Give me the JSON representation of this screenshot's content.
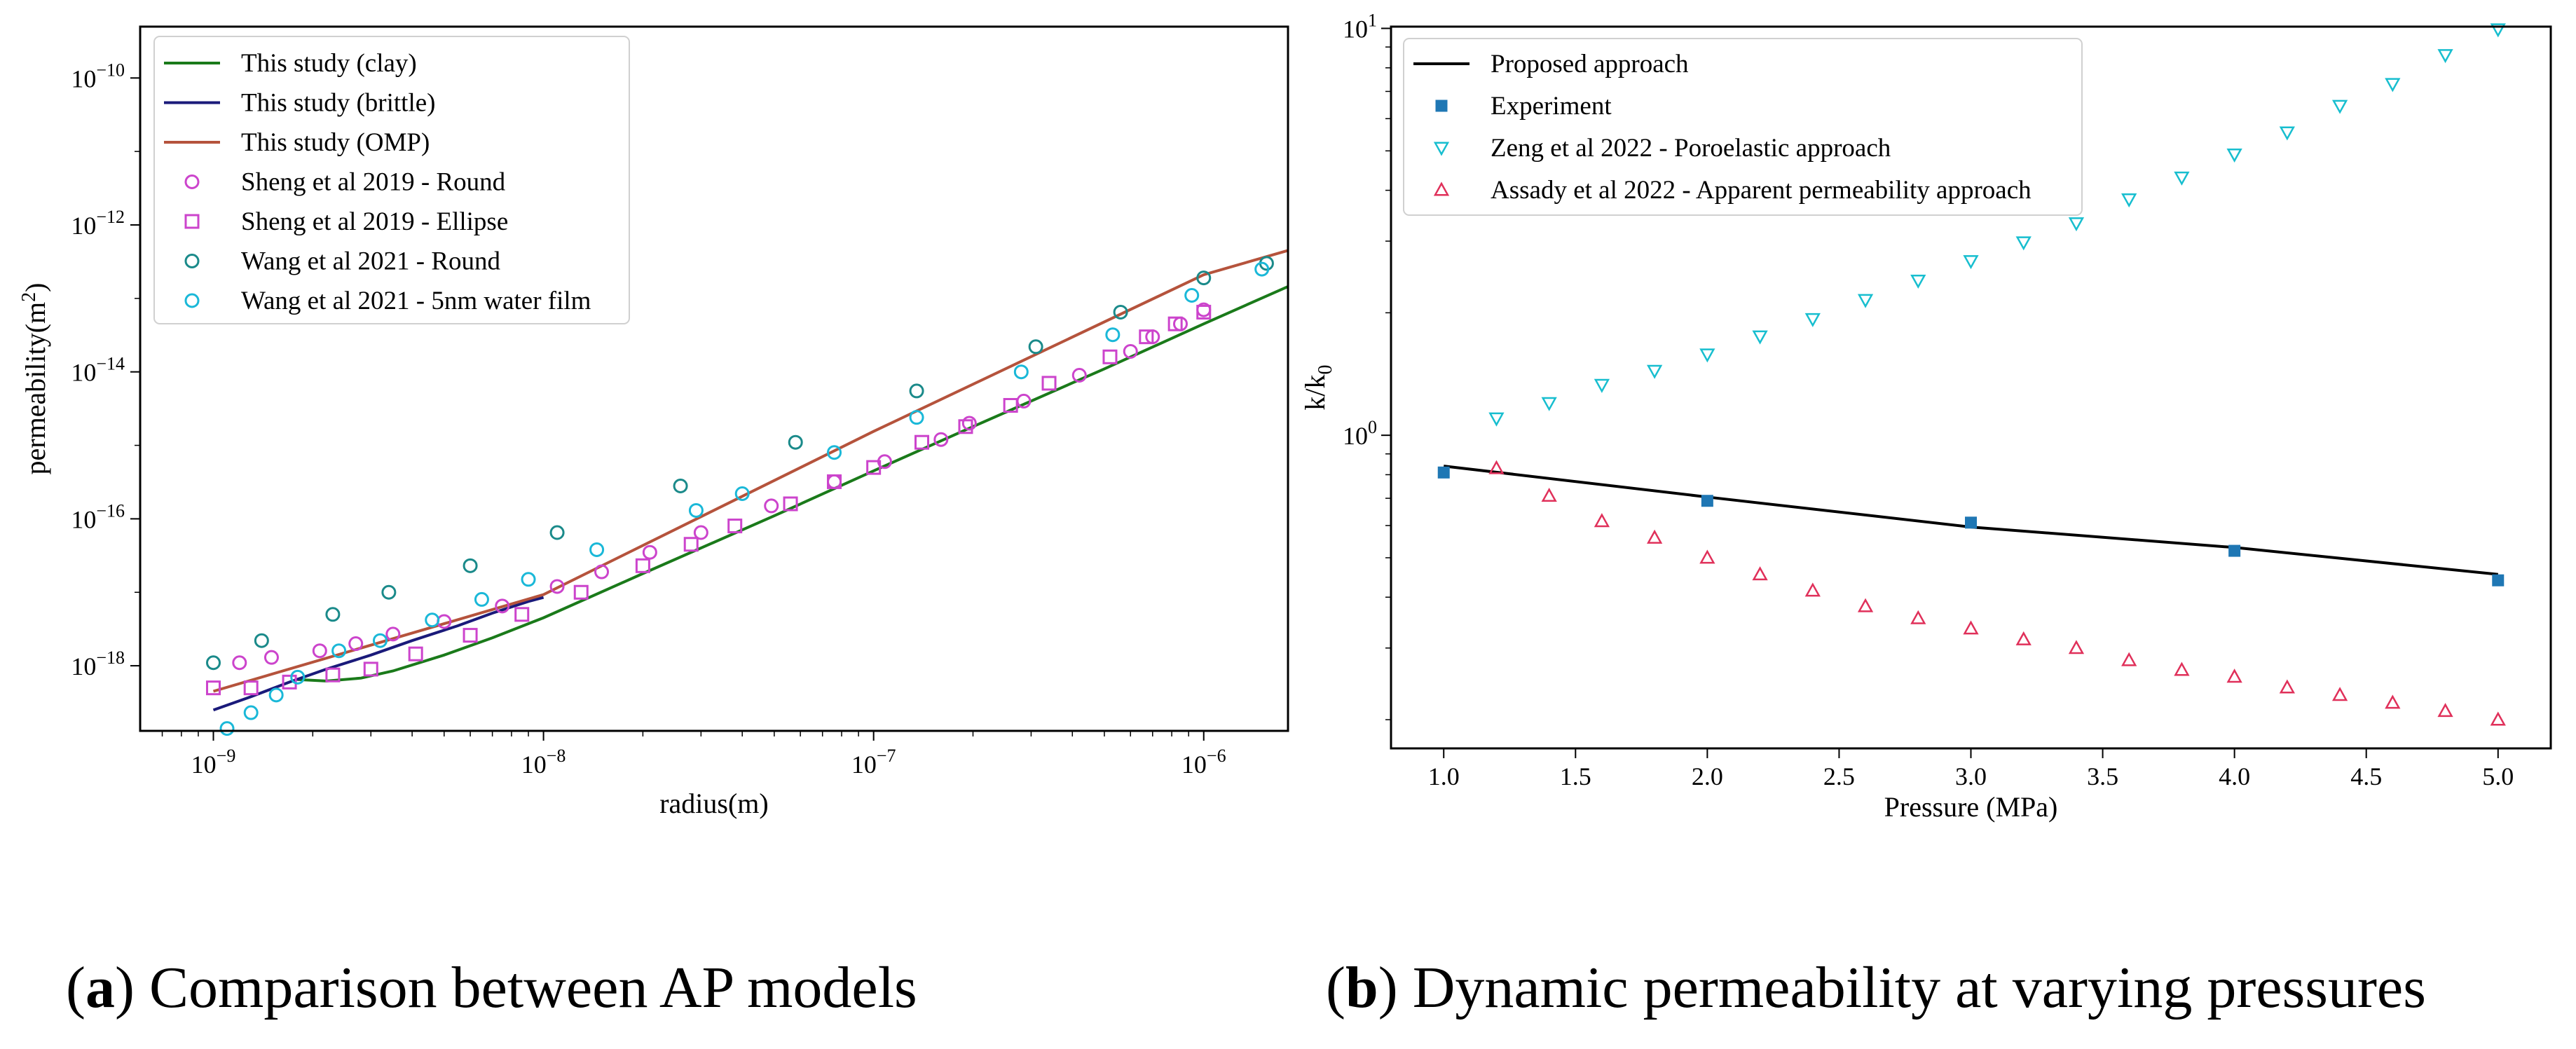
{
  "chart_data": [
    {
      "type": "line",
      "panel": "a",
      "xlabel": "radius(m)",
      "ylabel": "permeability(m^2)",
      "xscale": "log",
      "yscale": "log",
      "xlim": [
        6e-10,
        1.8e-06
      ],
      "ylim": [
        1.3e-19,
        5e-10
      ],
      "xticks": [
        {
          "v": 1e-09,
          "exp": "−9"
        },
        {
          "v": 1e-08,
          "exp": "−8"
        },
        {
          "v": 1e-07,
          "exp": "−7"
        },
        {
          "v": 1e-06,
          "exp": "−6"
        }
      ],
      "yticks": [
        {
          "v": 1e-18,
          "exp": "−18"
        },
        {
          "v": 1e-16,
          "exp": "−16"
        },
        {
          "v": 1e-14,
          "exp": "−14"
        },
        {
          "v": 1e-12,
          "exp": "−12"
        },
        {
          "v": 1e-10,
          "exp": "−10"
        }
      ],
      "legend_position": "top-left",
      "grid": false,
      "series": [
        {
          "name": "This study (clay)",
          "kind": "line",
          "color": "#1a7a1a",
          "points": [
            [
              1.8e-09,
              6.5e-19
            ],
            [
              2.2e-09,
              6.2e-19
            ],
            [
              2.8e-09,
              6.8e-19
            ],
            [
              3.5e-09,
              8.5e-19
            ],
            [
              5e-09,
              1.4e-18
            ],
            [
              7e-09,
              2.4e-18
            ],
            [
              1e-08,
              4.5e-18
            ],
            [
              2e-08,
              1.8e-17
            ],
            [
              5e-08,
              1.1e-16
            ],
            [
              1e-07,
              4.5e-16
            ],
            [
              2e-07,
              1.8e-15
            ],
            [
              5e-07,
              1.1e-14
            ],
            [
              1e-06,
              4.5e-14
            ],
            [
              1.8e-06,
              1.45e-13
            ]
          ]
        },
        {
          "name": "This study (brittle)",
          "kind": "line",
          "color": "#1a1a7a",
          "points": [
            [
              1e-09,
              2.5e-19
            ],
            [
              1.3e-09,
              3.8e-19
            ],
            [
              1.7e-09,
              6e-19
            ],
            [
              2.2e-09,
              9e-19
            ],
            [
              3e-09,
              1.4e-18
            ],
            [
              4e-09,
              2.2e-18
            ],
            [
              5.5e-09,
              3.5e-18
            ],
            [
              7e-09,
              5.2e-18
            ],
            [
              9e-09,
              7.5e-18
            ],
            [
              1e-08,
              8.5e-18
            ]
          ]
        },
        {
          "name": "This study (OMP)",
          "kind": "line",
          "color": "#b5533c",
          "points": [
            [
              1e-09,
              4.5e-19
            ],
            [
              1e-08,
              9.3e-18
            ],
            [
              1e-07,
              1.55e-15
            ],
            [
              1e-06,
              2.1e-13
            ],
            [
              1.8e-06,
              4.5e-13
            ]
          ]
        },
        {
          "name": "Sheng et al 2019 - Round",
          "kind": "circle",
          "color": "#cc44cc",
          "points": [
            [
              1.2e-09,
              1.1e-18
            ],
            [
              1.5e-09,
              1.3e-18
            ],
            [
              2.1e-09,
              1.6e-18
            ],
            [
              2.7e-09,
              2e-18
            ],
            [
              3.5e-09,
              2.7e-18
            ],
            [
              5e-09,
              4e-18
            ],
            [
              7.5e-09,
              6.5e-18
            ],
            [
              1.1e-08,
              1.2e-17
            ],
            [
              1.5e-08,
              1.9e-17
            ],
            [
              2.1e-08,
              3.5e-17
            ],
            [
              3e-08,
              6.5e-17
            ],
            [
              4.9e-08,
              1.5e-16
            ],
            [
              7.6e-08,
              3.2e-16
            ],
            [
              1.08e-07,
              6e-16
            ],
            [
              1.6e-07,
              1.2e-15
            ],
            [
              1.95e-07,
              2e-15
            ],
            [
              2.85e-07,
              4e-15
            ],
            [
              4.2e-07,
              9e-15
            ],
            [
              6e-07,
              1.9e-14
            ],
            [
              7e-07,
              3e-14
            ],
            [
              8.5e-07,
              4.5e-14
            ],
            [
              1e-06,
              7e-14
            ]
          ]
        },
        {
          "name": "Sheng et al 2019 - Ellipse",
          "kind": "square",
          "color": "#cc44cc",
          "points": [
            [
              1e-09,
              5e-19
            ],
            [
              1.3e-09,
              5e-19
            ],
            [
              1.7e-09,
              6e-19
            ],
            [
              2.3e-09,
              7.5e-19
            ],
            [
              3e-09,
              9e-19
            ],
            [
              4.1e-09,
              1.45e-18
            ],
            [
              6e-09,
              2.6e-18
            ],
            [
              8.6e-09,
              5e-18
            ],
            [
              1.3e-08,
              1e-17
            ],
            [
              2e-08,
              2.3e-17
            ],
            [
              2.8e-08,
              4.5e-17
            ],
            [
              3.8e-08,
              8e-17
            ],
            [
              5.6e-08,
              1.6e-16
            ],
            [
              7.6e-08,
              3.2e-16
            ],
            [
              1e-07,
              5e-16
            ],
            [
              1.4e-07,
              1.1e-15
            ],
            [
              1.9e-07,
              1.8e-15
            ],
            [
              2.6e-07,
              3.5e-15
            ],
            [
              3.4e-07,
              7e-15
            ],
            [
              5.2e-07,
              1.6e-14
            ],
            [
              6.7e-07,
              3e-14
            ],
            [
              8.2e-07,
              4.5e-14
            ],
            [
              1e-06,
              6.5e-14
            ]
          ]
        },
        {
          "name": "Wang et al 2021 - Round",
          "kind": "circle",
          "color": "#1a8a8a",
          "points": [
            [
              1e-09,
              1.1e-18
            ],
            [
              1.4e-09,
              2.2e-18
            ],
            [
              2.3e-09,
              5e-18
            ],
            [
              3.4e-09,
              1e-17
            ],
            [
              6e-09,
              2.3e-17
            ],
            [
              1.1e-08,
              6.5e-17
            ],
            [
              2.6e-08,
              2.8e-16
            ],
            [
              5.8e-08,
              1.1e-15
            ],
            [
              1.35e-07,
              5.5e-15
            ],
            [
              3.1e-07,
              2.2e-14
            ],
            [
              5.6e-07,
              6.5e-14
            ],
            [
              1e-06,
              1.9e-13
            ],
            [
              1.55e-06,
              3e-13
            ]
          ]
        },
        {
          "name": "Wang et al 2021 - 5nm water film",
          "kind": "circle",
          "color": "#1ab8d8",
          "points": [
            [
              1.1e-09,
              1.4e-19
            ],
            [
              1.3e-09,
              2.3e-19
            ],
            [
              1.55e-09,
              4e-19
            ],
            [
              1.8e-09,
              7e-19
            ],
            [
              2.4e-09,
              1.6e-18
            ],
            [
              3.2e-09,
              2.2e-18
            ],
            [
              4.6e-09,
              4.2e-18
            ],
            [
              6.5e-09,
              8e-18
            ],
            [
              9e-09,
              1.5e-17
            ],
            [
              1.45e-08,
              3.8e-17
            ],
            [
              2.9e-08,
              1.3e-16
            ],
            [
              4e-08,
              2.2e-16
            ],
            [
              7.6e-08,
              8e-16
            ],
            [
              1.35e-07,
              2.4e-15
            ],
            [
              2.8e-07,
              1e-14
            ],
            [
              5.3e-07,
              3.2e-14
            ],
            [
              9.2e-07,
              1.1e-13
            ],
            [
              1.5e-06,
              2.5e-13
            ]
          ]
        }
      ]
    },
    {
      "type": "scatter",
      "panel": "b",
      "xlabel": "Pressure (MPa)",
      "ylabel": "k/k0",
      "xscale": "linear",
      "yscale": "log",
      "xlim": [
        0.8,
        5.2
      ],
      "ylim": [
        0.17,
        10.1
      ],
      "xticks": [
        "1.0",
        "1.5",
        "2.0",
        "2.5",
        "3.0",
        "3.5",
        "4.0",
        "4.5",
        "5.0"
      ],
      "yticks": [
        {
          "v": 1,
          "exp": "0"
        },
        {
          "v": 10,
          "exp": "1"
        }
      ],
      "legend_position": "top-left",
      "grid": false,
      "series": [
        {
          "name": "Proposed approach",
          "kind": "line",
          "color": "#000000",
          "points": [
            [
              1.0,
              0.84
            ],
            [
              2.0,
              0.705
            ],
            [
              3.0,
              0.595
            ],
            [
              4.0,
              0.53
            ],
            [
              5.0,
              0.455
            ]
          ]
        },
        {
          "name": "Experiment",
          "kind": "square",
          "color": "#1f77b4",
          "points": [
            [
              1.0,
              0.81
            ],
            [
              2.0,
              0.69
            ],
            [
              3.0,
              0.61
            ],
            [
              4.0,
              0.52
            ],
            [
              5.0,
              0.44
            ]
          ]
        },
        {
          "name": "Zeng et al 2022 - Poroelastic approach",
          "kind": "tri-down",
          "color": "#17becf",
          "points": [
            [
              1.2,
              1.1
            ],
            [
              1.4,
              1.2
            ],
            [
              1.6,
              1.33
            ],
            [
              1.8,
              1.44
            ],
            [
              2.0,
              1.58
            ],
            [
              2.2,
              1.75
            ],
            [
              2.4,
              1.93
            ],
            [
              2.6,
              2.15
            ],
            [
              2.8,
              2.4
            ],
            [
              3.0,
              2.68
            ],
            [
              3.2,
              2.98
            ],
            [
              3.4,
              3.32
            ],
            [
              3.6,
              3.8
            ],
            [
              3.8,
              4.3
            ],
            [
              4.0,
              4.9
            ],
            [
              4.2,
              5.55
            ],
            [
              4.4,
              6.45
            ],
            [
              4.6,
              7.3
            ],
            [
              4.8,
              8.6
            ],
            [
              5.0,
              9.95
            ]
          ]
        },
        {
          "name": "Assady et al 2022 - Apparent permeability approach",
          "kind": "tri-up",
          "color": "#e0305a",
          "points": [
            [
              1.2,
              0.83
            ],
            [
              1.4,
              0.71
            ],
            [
              1.6,
              0.615
            ],
            [
              1.8,
              0.56
            ],
            [
              2.0,
              0.5
            ],
            [
              2.2,
              0.455
            ],
            [
              2.4,
              0.415
            ],
            [
              2.6,
              0.38
            ],
            [
              2.8,
              0.355
            ],
            [
              3.0,
              0.335
            ],
            [
              3.2,
              0.315
            ],
            [
              3.4,
              0.3
            ],
            [
              3.6,
              0.28
            ],
            [
              3.8,
              0.265
            ],
            [
              4.0,
              0.255
            ],
            [
              4.2,
              0.24
            ],
            [
              4.4,
              0.23
            ],
            [
              4.6,
              0.22
            ],
            [
              4.8,
              0.21
            ],
            [
              5.0,
              0.2
            ]
          ]
        }
      ]
    }
  ],
  "captions": [
    {
      "letter": "a",
      "text": "Comparison between AP models"
    },
    {
      "letter": "b",
      "text": "Dynamic permeability at varying pressures"
    }
  ]
}
